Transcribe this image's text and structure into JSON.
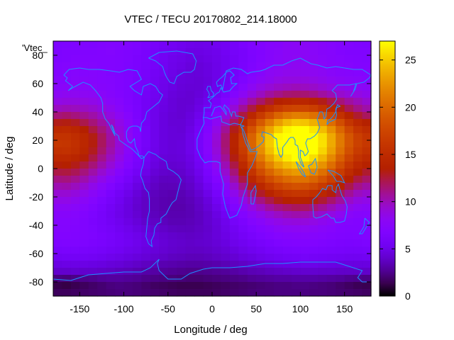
{
  "chart_data": {
    "type": "heatmap",
    "title": "VTEC / TECU 20170802_214.18000",
    "xlabel": "Longitude / deg",
    "ylabel": "Latitude / deg",
    "legend_key": "'Vtec_",
    "xlim": [
      -180,
      180
    ],
    "ylim": [
      -90,
      90
    ],
    "x_ticks": [
      -150,
      -100,
      -50,
      0,
      50,
      100,
      150
    ],
    "y_ticks": [
      -80,
      -60,
      -40,
      -20,
      0,
      20,
      40,
      60,
      80
    ],
    "colorbar": {
      "range": [
        0,
        27
      ],
      "ticks": [
        0,
        5,
        10,
        15,
        20,
        25
      ],
      "colormap": "gnuplot-heat"
    },
    "colors": {
      "coastline": "#1e90ff",
      "frame": "#000000"
    },
    "grid": false,
    "x": [
      -175,
      -165,
      -155,
      -145,
      -135,
      -125,
      -115,
      -105,
      -95,
      -85,
      -75,
      -65,
      -55,
      -45,
      -35,
      -25,
      -15,
      -5,
      5,
      15,
      25,
      35,
      45,
      55,
      65,
      75,
      85,
      95,
      105,
      115,
      125,
      135,
      145,
      155,
      165,
      175
    ],
    "y": [
      87.5,
      82.5,
      77.5,
      72.5,
      67.5,
      62.5,
      57.5,
      52.5,
      47.5,
      42.5,
      37.5,
      32.5,
      27.5,
      22.5,
      17.5,
      12.5,
      7.5,
      2.5,
      -2.5,
      -7.5,
      -12.5,
      -17.5,
      -22.5,
      -27.5,
      -32.5,
      -37.5,
      -42.5,
      -47.5,
      -52.5,
      -57.5,
      -62.5,
      -67.5,
      -72.5,
      -77.5,
      -82.5,
      -87.5
    ],
    "z": [
      [
        6.5,
        6.6,
        6.7,
        6.8,
        6.7,
        6.9,
        7.0,
        6.9,
        6.8,
        6.6,
        6.3,
        6.0,
        5.7,
        5.5,
        5.2,
        5.0,
        4.9,
        5.0,
        5.3,
        5.5,
        5.8,
        6.3,
        6.7,
        7.0,
        7.3,
        7.5,
        7.8,
        7.9,
        7.8,
        7.6,
        7.5,
        7.2,
        7.0,
        6.9,
        6.7,
        6.6
      ],
      [
        6.6,
        6.8,
        6.8,
        6.9,
        6.9,
        7.0,
        7.1,
        6.9,
        6.7,
        6.5,
        6.2,
        5.9,
        5.5,
        5.3,
        5.1,
        4.8,
        4.8,
        4.9,
        5.1,
        5.5,
        5.8,
        6.1,
        6.6,
        6.9,
        7.4,
        7.6,
        7.9,
        7.9,
        7.9,
        7.7,
        7.5,
        7.3,
        7.0,
        6.8,
        6.8,
        6.8
      ],
      [
        6.7,
        6.8,
        7.0,
        7.0,
        7.0,
        7.0,
        7.0,
        6.9,
        6.7,
        6.4,
        6.2,
        5.8,
        5.5,
        5.1,
        4.9,
        4.7,
        4.6,
        4.8,
        5.0,
        5.3,
        5.7,
        6.1,
        6.5,
        7.0,
        7.4,
        7.7,
        7.9,
        8.0,
        7.9,
        7.8,
        7.6,
        7.4,
        7.2,
        7.0,
        6.9,
        6.8
      ],
      [
        7.0,
        7.1,
        7.1,
        7.1,
        7.1,
        7.0,
        7.0,
        6.9,
        6.6,
        6.4,
        6.1,
        5.8,
        5.4,
        5.0,
        4.8,
        4.5,
        4.4,
        4.6,
        4.9,
        5.3,
        5.7,
        6.2,
        6.7,
        7.2,
        7.6,
        7.9,
        8.0,
        8.2,
        8.1,
        8.0,
        7.7,
        7.5,
        7.4,
        7.2,
        7.0,
        7.0
      ],
      [
        7.0,
        7.2,
        7.3,
        7.2,
        7.3,
        7.2,
        7.0,
        6.8,
        6.6,
        6.3,
        6.0,
        5.6,
        5.3,
        4.9,
        4.6,
        4.4,
        4.4,
        4.6,
        4.9,
        5.3,
        5.8,
        6.4,
        7.0,
        7.5,
        8.0,
        8.2,
        8.4,
        8.4,
        8.3,
        8.2,
        8.0,
        7.7,
        7.5,
        7.4,
        7.2,
        7.2
      ],
      [
        7.3,
        7.4,
        7.5,
        7.5,
        7.4,
        7.2,
        7.1,
        6.9,
        6.6,
        6.2,
        5.9,
        5.5,
        5.1,
        4.8,
        4.5,
        4.4,
        4.3,
        4.5,
        4.9,
        5.4,
        6.0,
        6.6,
        7.3,
        7.9,
        8.3,
        8.7,
        8.9,
        8.9,
        8.9,
        8.7,
        8.4,
        8.1,
        7.9,
        7.7,
        7.6,
        7.3
      ],
      [
        7.6,
        7.7,
        7.8,
        7.7,
        7.6,
        7.4,
        7.2,
        6.9,
        6.6,
        6.2,
        5.8,
        5.4,
        5.0,
        4.7,
        4.4,
        4.3,
        4.3,
        4.6,
        5.1,
        5.6,
        6.4,
        7.2,
        8.0,
        8.7,
        9.2,
        9.6,
        9.8,
        10.0,
        9.8,
        9.6,
        9.2,
        8.8,
        8.5,
        8.2,
        8.0,
        7.8
      ],
      [
        8.0,
        8.2,
        8.2,
        8.1,
        8.0,
        7.7,
        7.4,
        7.0,
        6.6,
        6.2,
        5.7,
        5.3,
        4.9,
        4.5,
        4.3,
        4.2,
        4.4,
        4.8,
        5.4,
        6.2,
        7.1,
        8.0,
        9.0,
        9.8,
        10.6,
        11.1,
        11.5,
        11.6,
        11.5,
        11.2,
        10.6,
        10.1,
        9.5,
        9.1,
        8.8,
        8.4
      ],
      [
        8.7,
        8.9,
        8.9,
        8.8,
        8.6,
        8.2,
        7.7,
        7.3,
        6.7,
        6.2,
        5.6,
        5.2,
        4.8,
        4.4,
        4.2,
        4.2,
        4.6,
        5.1,
        5.9,
        6.9,
        8.1,
        9.3,
        10.6,
        11.7,
        12.7,
        13.6,
        14.1,
        14.4,
        14.3,
        13.8,
        13.1,
        12.2,
        11.4,
        10.6,
        10.0,
        9.4
      ],
      [
        9.8,
        10.0,
        9.9,
        9.7,
        9.4,
        8.9,
        8.3,
        7.6,
        6.9,
        6.3,
        5.6,
        5.1,
        4.7,
        4.4,
        4.2,
        4.3,
        4.8,
        5.5,
        6.6,
        7.8,
        9.2,
        10.8,
        12.4,
        13.9,
        15.3,
        16.4,
        17.2,
        17.5,
        17.4,
        16.8,
        15.7,
        14.5,
        13.2,
        12.0,
        11.1,
        10.4
      ],
      [
        11.4,
        11.6,
        11.3,
        10.9,
        10.4,
        9.7,
        8.9,
        8.1,
        7.3,
        6.4,
        5.6,
        5.1,
        4.6,
        4.3,
        4.2,
        4.5,
        5.1,
        6.1,
        7.3,
        8.9,
        10.6,
        12.4,
        14.5,
        16.5,
        18.2,
        19.8,
        20.9,
        21.4,
        21.2,
        20.5,
        19.2,
        17.4,
        15.6,
        13.9,
        12.7,
        11.9
      ],
      [
        13.1,
        13.2,
        12.9,
        12.2,
        11.4,
        10.5,
        9.6,
        8.6,
        7.6,
        6.6,
        5.7,
        5.1,
        4.6,
        4.3,
        4.3,
        4.6,
        5.4,
        6.6,
        8.1,
        9.9,
        11.9,
        14.3,
        16.6,
        19.0,
        21.1,
        22.9,
        24.2,
        24.9,
        24.7,
        23.8,
        22.3,
        20.3,
        18.1,
        16.0,
        14.6,
        13.6
      ],
      [
        14.7,
        14.8,
        14.3,
        13.5,
        12.4,
        11.3,
        10.2,
        9.0,
        7.8,
        6.7,
        5.8,
        5.1,
        4.6,
        4.4,
        4.3,
        4.8,
        5.7,
        7.0,
        8.7,
        10.8,
        13.1,
        15.7,
        18.4,
        21.0,
        23.3,
        25.2,
        26.6,
        27.3,
        27.1,
        26.1,
        24.4,
        22.3,
        19.9,
        17.6,
        15.9,
        15.0
      ],
      [
        15.7,
        15.7,
        15.2,
        14.4,
        13.2,
        11.9,
        10.5,
        9.2,
        8.0,
        6.8,
        5.8,
        5.1,
        4.6,
        4.4,
        4.4,
        4.9,
        5.9,
        7.3,
        9.1,
        11.4,
        13.9,
        16.7,
        19.6,
        22.3,
        24.8,
        26.7,
        28.1,
        28.8,
        28.6,
        27.5,
        25.8,
        23.5,
        21.0,
        18.7,
        16.9,
        15.9
      ],
      [
        16.1,
        16.0,
        15.4,
        14.5,
        13.3,
        11.9,
        10.6,
        9.2,
        7.9,
        6.7,
        5.8,
        5.1,
        4.6,
        4.4,
        4.5,
        5.0,
        6.0,
        7.4,
        9.3,
        11.5,
        14.1,
        16.9,
        19.8,
        22.5,
        25.0,
        26.9,
        28.3,
        29.0,
        28.8,
        27.7,
        25.9,
        23.6,
        21.1,
        18.8,
        17.1,
        16.2
      ],
      [
        15.5,
        15.6,
        15.1,
        14.2,
        13.0,
        11.6,
        10.3,
        9.0,
        7.7,
        6.6,
        5.7,
        5.0,
        4.6,
        4.4,
        4.5,
        5.0,
        5.9,
        7.3,
        9.1,
        11.3,
        13.8,
        16.6,
        19.4,
        22.1,
        24.5,
        26.4,
        27.7,
        28.4,
        28.2,
        27.1,
        25.4,
        23.1,
        20.6,
        18.3,
        16.6,
        15.7
      ],
      [
        14.6,
        14.6,
        14.2,
        13.4,
        12.3,
        11.0,
        9.8,
        8.6,
        7.4,
        6.3,
        5.5,
        4.8,
        4.4,
        4.3,
        4.4,
        4.8,
        5.7,
        7.0,
        8.7,
        10.8,
        13.2,
        15.8,
        18.5,
        21.0,
        23.2,
        25.0,
        26.3,
        27.0,
        26.8,
        25.8,
        24.1,
        21.9,
        19.5,
        17.3,
        15.7,
        14.8
      ],
      [
        13.4,
        13.5,
        13.1,
        12.4,
        11.4,
        10.3,
        9.2,
        8.1,
        7.0,
        6.0,
        5.2,
        4.6,
        4.2,
        4.1,
        4.2,
        4.6,
        5.4,
        6.6,
        8.2,
        10.1,
        12.3,
        14.7,
        17.2,
        19.5,
        21.6,
        23.3,
        24.4,
        25.0,
        24.9,
        23.9,
        22.4,
        20.4,
        18.2,
        16.1,
        14.6,
        13.8
      ],
      [
        12.3,
        12.4,
        12.0,
        11.3,
        10.4,
        9.4,
        8.4,
        7.4,
        6.4,
        5.6,
        4.9,
        4.3,
        4.0,
        3.9,
        4.0,
        4.4,
        5.1,
        6.2,
        7.6,
        9.4,
        11.4,
        13.6,
        15.8,
        18.0,
        19.8,
        21.3,
        22.3,
        22.8,
        22.7,
        21.9,
        20.5,
        18.7,
        16.7,
        14.9,
        13.5,
        12.7
      ],
      [
        11.2,
        11.3,
        10.9,
        10.3,
        9.4,
        8.5,
        7.6,
        6.7,
        5.9,
        5.1,
        4.5,
        4.0,
        3.7,
        3.7,
        3.8,
        4.1,
        4.8,
        5.8,
        7.0,
        8.6,
        10.4,
        12.4,
        14.4,
        16.3,
        18.0,
        19.3,
        20.2,
        20.7,
        20.6,
        19.8,
        18.6,
        17.0,
        15.2,
        13.6,
        12.4,
        11.7
      ],
      [
        10.2,
        10.3,
        9.9,
        9.3,
        8.5,
        7.7,
        6.9,
        6.1,
        5.4,
        4.7,
        4.2,
        3.8,
        3.5,
        3.5,
        3.6,
        3.9,
        4.5,
        5.3,
        6.4,
        7.8,
        9.4,
        11.1,
        12.9,
        14.5,
        16.0,
        17.2,
        18.0,
        18.4,
        18.3,
        17.6,
        16.5,
        15.1,
        13.6,
        12.2,
        11.1,
        10.5
      ],
      [
        9.3,
        9.3,
        9.0,
        8.5,
        7.8,
        7.1,
        6.3,
        5.6,
        5.0,
        4.4,
        3.9,
        3.6,
        3.4,
        3.3,
        3.4,
        3.7,
        4.2,
        4.9,
        5.9,
        7.1,
        8.4,
        9.9,
        11.4,
        12.8,
        14.0,
        15.1,
        15.8,
        16.1,
        16.0,
        15.4,
        14.5,
        13.3,
        12.0,
        10.8,
        9.9,
        9.5
      ],
      [
        8.6,
        8.6,
        8.3,
        7.8,
        7.2,
        6.5,
        5.9,
        5.3,
        4.7,
        4.2,
        3.8,
        3.5,
        3.3,
        3.2,
        3.3,
        3.5,
        3.9,
        4.5,
        5.4,
        6.4,
        7.5,
        8.8,
        10.0,
        11.2,
        12.2,
        13.1,
        13.6,
        13.9,
        13.8,
        13.3,
        12.6,
        11.6,
        10.6,
        9.6,
        8.9,
        8.6
      ],
      [
        7.9,
        7.9,
        7.7,
        7.3,
        6.8,
        6.2,
        5.6,
        5.1,
        4.6,
        4.1,
        3.8,
        3.5,
        3.3,
        3.2,
        3.2,
        3.4,
        3.8,
        4.3,
        5.0,
        5.8,
        6.8,
        7.8,
        8.8,
        9.7,
        10.6,
        11.2,
        11.6,
        11.9,
        11.8,
        11.4,
        10.8,
        10.0,
        9.2,
        8.5,
        8.0,
        7.8
      ],
      [
        7.5,
        7.5,
        7.3,
        7.0,
        6.5,
        6.0,
        5.5,
        5.0,
        4.6,
        4.2,
        3.8,
        3.6,
        3.4,
        3.3,
        3.3,
        3.4,
        3.7,
        4.1,
        4.7,
        5.4,
        6.2,
        7.0,
        7.8,
        8.5,
        9.2,
        9.7,
        10.1,
        10.3,
        10.2,
        9.9,
        9.4,
        8.8,
        8.2,
        7.7,
        7.4,
        7.3
      ],
      [
        7.2,
        7.2,
        7.1,
        6.8,
        6.4,
        6.0,
        5.6,
        5.2,
        4.8,
        4.4,
        4.0,
        3.8,
        3.6,
        3.4,
        3.4,
        3.5,
        3.7,
        4.1,
        4.5,
        5.1,
        5.8,
        6.4,
        7.1,
        7.6,
        8.2,
        8.6,
        8.9,
        9.0,
        9.0,
        8.7,
        8.3,
        7.9,
        7.4,
        7.1,
        7.0,
        7.0
      ],
      [
        7.1,
        7.1,
        7.0,
        6.8,
        6.5,
        6.1,
        5.8,
        5.4,
        5.1,
        4.7,
        4.4,
        4.1,
        3.9,
        3.7,
        3.6,
        3.6,
        3.8,
        4.0,
        4.4,
        4.9,
        5.4,
        6.0,
        6.5,
        7.0,
        7.4,
        7.8,
        8.0,
        8.1,
        8.1,
        7.9,
        7.6,
        7.3,
        7.0,
        6.9,
        6.9,
        7.0
      ],
      [
        7.0,
        7.0,
        6.9,
        6.8,
        6.6,
        6.3,
        6.0,
        5.7,
        5.3,
        5.0,
        4.7,
        4.4,
        4.2,
        4.0,
        3.9,
        3.8,
        3.9,
        4.1,
        4.4,
        4.8,
        5.2,
        5.7,
        6.1,
        6.5,
        6.9,
        7.2,
        7.4,
        7.5,
        7.5,
        7.4,
        7.2,
        7.0,
        6.8,
        6.7,
        6.8,
        6.9
      ],
      [
        6.6,
        6.7,
        6.7,
        6.6,
        6.4,
        6.2,
        5.9,
        5.7,
        5.4,
        5.1,
        4.8,
        4.6,
        4.3,
        4.1,
        4.0,
        3.9,
        4.0,
        4.1,
        4.3,
        4.6,
        5.0,
        5.3,
        5.7,
        6.0,
        6.3,
        6.6,
        6.8,
        6.9,
        6.9,
        6.9,
        6.7,
        6.5,
        6.4,
        6.3,
        6.4,
        6.5
      ],
      [
        6.1,
        6.2,
        6.2,
        6.1,
        6.0,
        5.8,
        5.6,
        5.4,
        5.1,
        4.9,
        4.6,
        4.4,
        4.2,
        4.0,
        3.9,
        3.8,
        3.8,
        3.9,
        4.1,
        4.3,
        4.6,
        4.9,
        5.2,
        5.5,
        5.8,
        6.0,
        6.2,
        6.3,
        6.4,
        6.3,
        6.2,
        6.1,
        6.0,
        5.9,
        5.9,
        6.0
      ],
      [
        5.5,
        5.6,
        5.6,
        5.6,
        5.5,
        5.3,
        5.1,
        4.9,
        4.7,
        4.5,
        4.3,
        4.1,
        3.9,
        3.7,
        3.6,
        3.5,
        3.5,
        3.6,
        3.8,
        4.0,
        4.2,
        4.5,
        4.7,
        5.0,
        5.2,
        5.4,
        5.6,
        5.7,
        5.8,
        5.7,
        5.6,
        5.5,
        5.4,
        5.3,
        5.3,
        5.4
      ],
      [
        4.7,
        4.8,
        4.8,
        4.8,
        4.7,
        4.6,
        4.4,
        4.3,
        4.1,
        3.9,
        3.7,
        3.5,
        3.3,
        3.2,
        3.1,
        3.0,
        3.0,
        3.1,
        3.2,
        3.4,
        3.6,
        3.8,
        4.0,
        4.2,
        4.4,
        4.6,
        4.7,
        4.8,
        4.9,
        4.9,
        4.8,
        4.7,
        4.6,
        4.6,
        4.6,
        4.6
      ],
      [
        4.0,
        4.0,
        4.1,
        4.0,
        4.0,
        3.9,
        3.8,
        3.6,
        3.5,
        3.3,
        3.1,
        3.0,
        2.8,
        2.7,
        2.6,
        2.5,
        2.5,
        2.6,
        2.7,
        2.8,
        3.0,
        3.2,
        3.4,
        3.5,
        3.7,
        3.8,
        3.9,
        4.0,
        4.1,
        4.1,
        4.0,
        4.0,
        3.9,
        3.9,
        3.9,
        3.9
      ],
      [
        2.3,
        2.2,
        2.4,
        2.5,
        2.6,
        2.8,
        2.9,
        2.9,
        2.8,
        2.7,
        2.5,
        2.4,
        2.3,
        2.2,
        2.1,
        2.0,
        2.0,
        2.1,
        2.2,
        2.3,
        2.4,
        2.5,
        2.7,
        2.8,
        2.9,
        3.0,
        3.0,
        3.1,
        3.1,
        3.1,
        3.0,
        2.9,
        2.8,
        2.6,
        2.5,
        2.4
      ],
      [
        1.3,
        1.2,
        1.4,
        1.6,
        1.8,
        2.0,
        2.2,
        2.3,
        2.2,
        2.1,
        1.9,
        1.7,
        1.6,
        1.5,
        1.4,
        1.4,
        1.4,
        1.5,
        1.6,
        1.7,
        1.8,
        1.9,
        2.0,
        2.1,
        2.2,
        2.3,
        2.3,
        2.4,
        2.4,
        2.3,
        2.2,
        2.1,
        1.9,
        1.7,
        1.5,
        1.4
      ],
      [
        1.6,
        1.6,
        1.7,
        1.8,
        1.9,
        2.0,
        2.1,
        2.2,
        2.2,
        2.1,
        2.0,
        1.9,
        1.8,
        1.7,
        1.6,
        1.6,
        1.6,
        1.6,
        1.7,
        1.8,
        1.9,
        2.0,
        2.1,
        2.2,
        2.2,
        2.3,
        2.3,
        2.3,
        2.3,
        2.2,
        2.2,
        2.1,
        2.0,
        1.9,
        1.8,
        1.7
      ]
    ]
  }
}
